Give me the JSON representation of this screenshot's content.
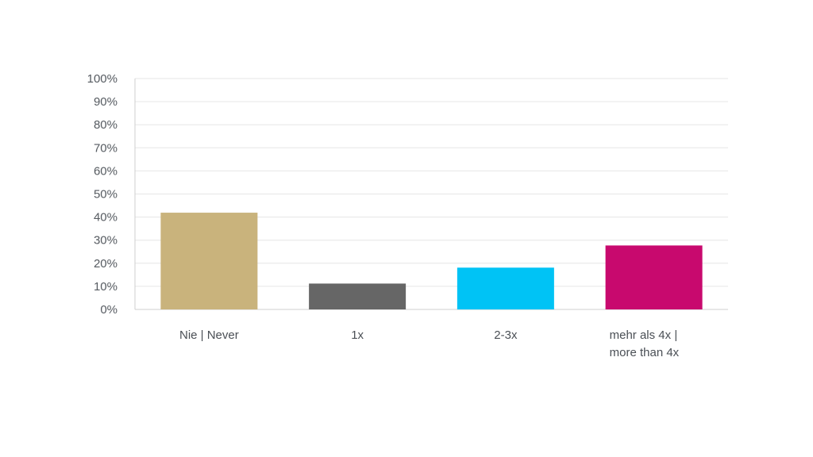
{
  "chart_data": {
    "type": "bar",
    "categories": [
      [
        "Nie | Never"
      ],
      [
        "1x"
      ],
      [
        "2-3x"
      ],
      [
        "mehr als 4x |",
        "more than 4x"
      ]
    ],
    "values": [
      41.9,
      11.2,
      18.1,
      27.7
    ],
    "colors": [
      "#c9b37c",
      "#666666",
      "#00c3f5",
      "#c8096e"
    ],
    "y_ticks": [
      "0%",
      "10%",
      "20%",
      "30%",
      "40%",
      "50%",
      "60%",
      "70%",
      "80%",
      "90%",
      "100%"
    ],
    "ylim": [
      0,
      100
    ],
    "grid": true,
    "title": "",
    "xlabel": "",
    "ylabel": ""
  }
}
